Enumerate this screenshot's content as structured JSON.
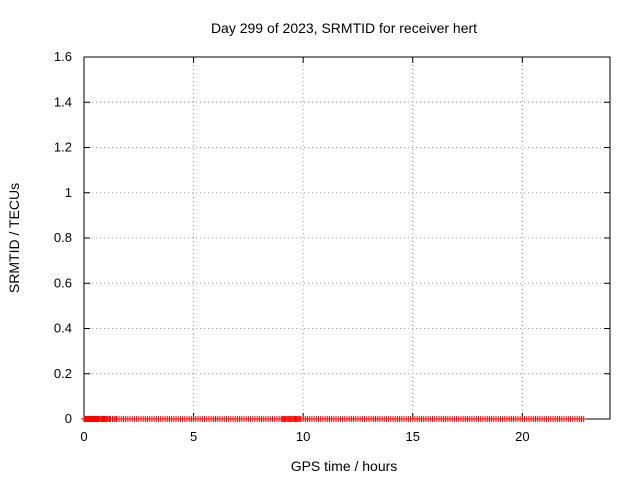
{
  "chart_data": {
    "type": "scatter",
    "title": "Day 299 of 2023, SRMTID for receiver hert",
    "xlabel": "GPS time / hours",
    "ylabel": "SRMTID / TECUs",
    "xlim": [
      0,
      24
    ],
    "ylim": [
      0,
      1.6
    ],
    "xticks": [
      0,
      5,
      10,
      15,
      20
    ],
    "xtick_labels": [
      "0",
      "5",
      "10",
      "15",
      "20"
    ],
    "yticks": [
      0,
      0.2,
      0.4,
      0.6,
      0.8,
      1.0,
      1.2,
      1.4,
      1.6
    ],
    "ytick_labels": [
      "0",
      "0.2",
      "0.4",
      "0.6",
      "0.8",
      "1",
      "1.2",
      "1.4",
      "1.6"
    ],
    "grid": true,
    "marker": "+",
    "color": "#ff0000",
    "series": [
      {
        "name": "SRMTID",
        "x": [
          0.0,
          0.1,
          0.2,
          0.3,
          0.4,
          0.5,
          0.6,
          0.7,
          0.8,
          0.9,
          1.0,
          1.1,
          1.2,
          1.3,
          1.4,
          1.5,
          1.6,
          1.7,
          1.8,
          1.9,
          2.0,
          2.1,
          2.2,
          2.3,
          2.4,
          2.5,
          2.6,
          2.7,
          2.8,
          2.9,
          3.0,
          3.1,
          3.2,
          3.3,
          3.4,
          3.5,
          3.6,
          3.7,
          3.8,
          3.9,
          4.0,
          4.1,
          4.2,
          4.3,
          4.4,
          4.5,
          4.6,
          4.7,
          4.8,
          4.9,
          5.0,
          5.1,
          5.2,
          5.3,
          5.4,
          5.5,
          5.6,
          5.7,
          5.8,
          5.9,
          6.0,
          6.1,
          6.2,
          6.3,
          6.4,
          6.5,
          6.6,
          6.7,
          6.8,
          6.9,
          7.0,
          7.1,
          7.2,
          7.3,
          7.4,
          7.5,
          7.6,
          7.7,
          7.8,
          7.9,
          8.0,
          8.1,
          8.2,
          8.3,
          8.4,
          8.5,
          8.6,
          8.7,
          8.8,
          8.9,
          9.0,
          9.05,
          9.1,
          9.15,
          9.2,
          9.25,
          9.3,
          9.35,
          9.4,
          9.45,
          9.5,
          9.55,
          9.6,
          9.65,
          9.7,
          9.75,
          9.8,
          9.85,
          9.9,
          10.0,
          10.1,
          10.2,
          10.3,
          10.4,
          10.5,
          10.6,
          10.7,
          10.8,
          10.9,
          11.0,
          11.1,
          11.2,
          11.3,
          11.4,
          11.5,
          11.6,
          11.7,
          11.8,
          11.9,
          12.0,
          12.1,
          12.2,
          12.3,
          12.4,
          12.5,
          12.6,
          12.7,
          12.8,
          12.9,
          13.0,
          13.1,
          13.2,
          13.3,
          13.4,
          13.5,
          13.6,
          13.7,
          13.8,
          13.9,
          14.0,
          14.1,
          14.2,
          14.3,
          14.4,
          14.5,
          14.6,
          14.7,
          14.8,
          14.9,
          15.0,
          15.1,
          15.2,
          15.3,
          15.4,
          15.5,
          15.6,
          15.7,
          15.8,
          15.9,
          16.0,
          16.1,
          16.2,
          16.3,
          16.4,
          16.5,
          16.6,
          16.7,
          16.8,
          16.9,
          17.0,
          17.1,
          17.2,
          17.3,
          17.4,
          17.5,
          17.6,
          17.7,
          17.8,
          17.9,
          18.0,
          18.1,
          18.2,
          18.3,
          18.4,
          18.5,
          18.6,
          18.7,
          18.8,
          18.9,
          19.0,
          19.1,
          19.2,
          19.3,
          19.4,
          19.5,
          19.6,
          19.7,
          19.8,
          19.9,
          20.0,
          20.1,
          20.2,
          20.3,
          20.4,
          20.5,
          20.6,
          20.7,
          20.8,
          20.9,
          21.0,
          21.1,
          21.2,
          21.3,
          21.4,
          21.5,
          21.6,
          21.7,
          21.8,
          21.9,
          22.0,
          22.1,
          22.2,
          22.3,
          22.4,
          22.5,
          22.6,
          22.7,
          22.8,
          0.05,
          0.08,
          0.12,
          0.1,
          0.14,
          0.09,
          0.16,
          0.12,
          0.18,
          0.15,
          0.2,
          0.13,
          0.22,
          0.17,
          0.12,
          0.19,
          0.1,
          0.15,
          0.11,
          0.14,
          0.18,
          0.27,
          0.16,
          0.22,
          0.13,
          0.19,
          0.15,
          0.21,
          0.3,
          0.25,
          0.39,
          0.33,
          0.28,
          0.22,
          0.17,
          0.14,
          0.12,
          0.1,
          0.15,
          0.13,
          0.09,
          0.11,
          0.14,
          0.1,
          0.12,
          0.16,
          0.13,
          0.18,
          0.2,
          0.28,
          0.33,
          0.25,
          0.42,
          0.46,
          0.38,
          0.21,
          0.15,
          0.18,
          0.12,
          0.17,
          0.14,
          0.19,
          0.11,
          0.16,
          0.13,
          0.09,
          0.2,
          0.24,
          0.36,
          0.52,
          0.55,
          0.28,
          0.22,
          0.3,
          0.36,
          0.31,
          0.25,
          0.19,
          0.33,
          0.22,
          0.27,
          0.18,
          0.24,
          0.32,
          0.19,
          0.26,
          0.14,
          0.38,
          0.29,
          0.64,
          1.5,
          1.46,
          1.32,
          1.21,
          1.05,
          0.92,
          1.16,
          0.84,
          0.95,
          1.06,
          0.68,
          0.52,
          0.74,
          0.88,
          0.45,
          0.61,
          0.83,
          0.55,
          0.31,
          0.27,
          0.38,
          0.21,
          0.34,
          0.25,
          0.19,
          0.29,
          0.36,
          0.23,
          0.18,
          0.27,
          0.33,
          0.16,
          0.24,
          0.3,
          0.21,
          0.17,
          0.26,
          0.32,
          0.2,
          0.25,
          0.64,
          0.57,
          0.48,
          0.31,
          0.22,
          0.37,
          0.44,
          0.28,
          0.19,
          0.35,
          0.24,
          0.3,
          0.17,
          0.26,
          0.38,
          0.22,
          0.29,
          0.33,
          0.52,
          0.27,
          0.36,
          0.21,
          0.31,
          0.25,
          0.49,
          0.37,
          0.28,
          0.34,
          0.2,
          0.42,
          0.31,
          0.26,
          0.35,
          0.18,
          0.24,
          0.4,
          0.29,
          0.22,
          0.19,
          0.27,
          0.16,
          0.21,
          0.18,
          0.29,
          0.13,
          0.2,
          0.17,
          0.22,
          0.26,
          0.24,
          0.19,
          0.23,
          0.15,
          0.09,
          0.06,
          0.12,
          0.08,
          0.11,
          0.14,
          0.26,
          0.22,
          0.17,
          0.2,
          0.15,
          0.11,
          0.18,
          0.13,
          0.16,
          0.1,
          0.19,
          0.14,
          0.21,
          0.15,
          0.12,
          0.08,
          0.11,
          0.16,
          0.13,
          0.21,
          0.26,
          0.33,
          0.18,
          0.12,
          0.09,
          0.14,
          0.11,
          0.08,
          0.13,
          0.07,
          0.1,
          0.12,
          0.06,
          0.09,
          0.11,
          0.08,
          0.05
        ]
      }
    ]
  }
}
